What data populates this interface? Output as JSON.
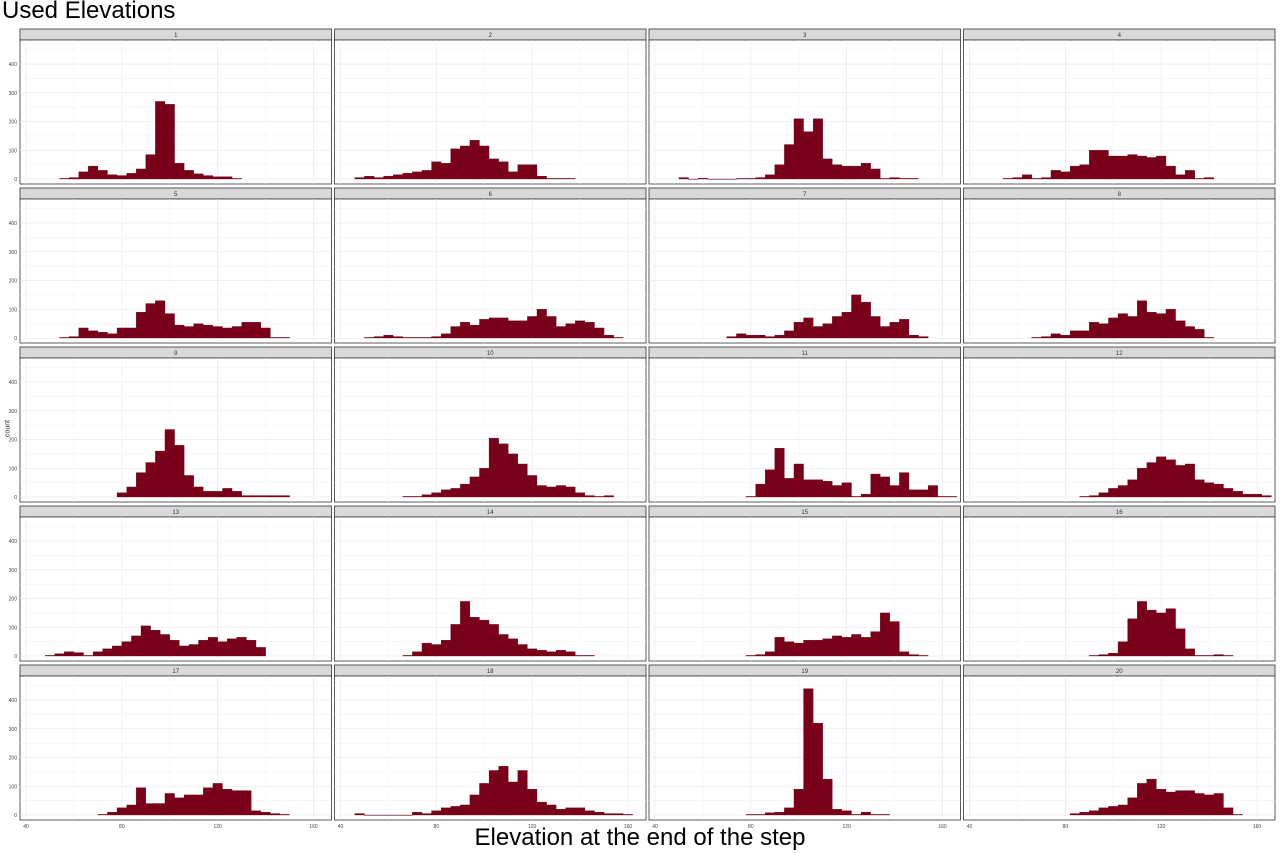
{
  "chart_data": {
    "type": "histogram",
    "layout": "facet-grid",
    "facet_columns": 4,
    "title": "Used Elevations",
    "xlabel": "Elevation at the end of the step",
    "ylabel": "count",
    "xlim": [
      40,
      165
    ],
    "ylim": [
      0,
      470
    ],
    "xticks": [
      40,
      80,
      120,
      160
    ],
    "yticks": [
      0,
      100,
      200,
      300,
      400
    ],
    "bin_width": 4,
    "bin_start": 54,
    "bar_color": "#7a0019",
    "bar_edge": "#5a0012",
    "strip_color": "#d9d9d9",
    "grid": true,
    "panels": [
      {
        "label": "1",
        "start": 54,
        "counts": [
          2,
          5,
          25,
          45,
          30,
          15,
          12,
          20,
          35,
          85,
          270,
          260,
          55,
          30,
          18,
          12,
          8,
          8,
          2
        ]
      },
      {
        "label": "2",
        "start": 46,
        "counts": [
          5,
          10,
          5,
          10,
          15,
          20,
          25,
          30,
          60,
          55,
          105,
          115,
          135,
          115,
          70,
          60,
          25,
          50,
          50,
          10,
          2,
          2,
          2
        ]
      },
      {
        "label": "3",
        "start": 50,
        "counts": [
          5,
          0,
          3,
          0,
          0,
          0,
          2,
          2,
          5,
          15,
          50,
          120,
          210,
          165,
          210,
          70,
          50,
          45,
          45,
          55,
          35,
          2,
          5,
          2,
          2
        ]
      },
      {
        "label": "4",
        "start": 54,
        "counts": [
          2,
          5,
          15,
          2,
          5,
          30,
          25,
          45,
          50,
          100,
          100,
          80,
          80,
          85,
          80,
          75,
          80,
          45,
          15,
          30,
          2,
          5
        ]
      },
      {
        "label": "5",
        "start": 54,
        "counts": [
          2,
          5,
          35,
          25,
          20,
          15,
          35,
          35,
          90,
          120,
          130,
          85,
          45,
          40,
          50,
          45,
          40,
          35,
          40,
          55,
          55,
          35,
          2,
          2
        ]
      },
      {
        "label": "6",
        "start": 50,
        "counts": [
          2,
          5,
          10,
          5,
          2,
          2,
          2,
          5,
          15,
          40,
          55,
          45,
          65,
          70,
          70,
          60,
          60,
          75,
          100,
          75,
          40,
          50,
          60,
          55,
          35,
          10,
          2
        ]
      },
      {
        "label": "7",
        "start": 70,
        "counts": [
          5,
          15,
          10,
          10,
          5,
          10,
          25,
          55,
          70,
          40,
          50,
          75,
          90,
          150,
          125,
          75,
          40,
          55,
          65,
          10,
          5
        ]
      },
      {
        "label": "8",
        "start": 66,
        "counts": [
          2,
          5,
          15,
          10,
          25,
          25,
          55,
          50,
          70,
          85,
          75,
          130,
          90,
          85,
          100,
          60,
          40,
          30,
          2
        ]
      },
      {
        "label": "9",
        "start": 78,
        "counts": [
          15,
          35,
          85,
          120,
          160,
          235,
          180,
          75,
          35,
          20,
          20,
          30,
          20,
          5,
          5,
          5,
          5,
          5
        ]
      },
      {
        "label": "10",
        "start": 66,
        "counts": [
          2,
          2,
          8,
          15,
          25,
          30,
          45,
          70,
          100,
          205,
          185,
          150,
          115,
          75,
          40,
          35,
          40,
          35,
          15,
          5,
          2,
          5
        ]
      },
      {
        "label": "11",
        "start": 78,
        "counts": [
          2,
          45,
          95,
          170,
          65,
          115,
          60,
          60,
          55,
          40,
          50,
          2,
          10,
          80,
          70,
          40,
          85,
          25,
          25,
          40,
          2,
          2
        ]
      },
      {
        "label": "12",
        "start": 86,
        "counts": [
          2,
          5,
          15,
          30,
          40,
          60,
          100,
          120,
          140,
          130,
          110,
          115,
          60,
          50,
          45,
          30,
          20,
          10,
          10,
          5
        ]
      },
      {
        "label": "13",
        "start": 48,
        "counts": [
          2,
          8,
          15,
          12,
          2,
          15,
          25,
          35,
          50,
          70,
          105,
          90,
          75,
          55,
          35,
          40,
          55,
          65,
          50,
          60,
          65,
          55,
          30
        ]
      },
      {
        "label": "14",
        "start": 66,
        "counts": [
          2,
          15,
          45,
          40,
          55,
          110,
          190,
          135,
          125,
          110,
          75,
          60,
          40,
          25,
          20,
          15,
          20,
          15,
          2,
          2
        ]
      },
      {
        "label": "15",
        "start": 78,
        "counts": [
          2,
          5,
          15,
          65,
          50,
          45,
          55,
          55,
          60,
          70,
          65,
          75,
          65,
          85,
          150,
          120,
          15,
          5,
          2
        ]
      },
      {
        "label": "16",
        "start": 90,
        "counts": [
          2,
          5,
          10,
          50,
          130,
          190,
          160,
          150,
          165,
          95,
          25,
          2,
          2,
          5,
          2
        ]
      },
      {
        "label": "17",
        "start": 70,
        "counts": [
          2,
          10,
          25,
          35,
          95,
          40,
          40,
          75,
          60,
          70,
          70,
          95,
          110,
          90,
          85,
          85,
          15,
          10,
          5,
          2
        ]
      },
      {
        "label": "18",
        "start": 46,
        "counts": [
          5,
          0,
          0,
          0,
          0,
          0,
          10,
          5,
          15,
          25,
          30,
          35,
          70,
          110,
          155,
          170,
          115,
          155,
          90,
          45,
          35,
          20,
          25,
          25,
          15,
          10,
          5,
          5,
          2
        ]
      },
      {
        "label": "19",
        "start": 78,
        "counts": [
          2,
          2,
          8,
          10,
          25,
          90,
          440,
          320,
          125,
          20,
          15,
          2,
          10,
          2,
          2
        ]
      },
      {
        "label": "20",
        "start": 82,
        "counts": [
          5,
          10,
          15,
          25,
          30,
          35,
          60,
          110,
          125,
          90,
          80,
          85,
          85,
          75,
          70,
          75,
          25,
          2
        ]
      }
    ]
  }
}
